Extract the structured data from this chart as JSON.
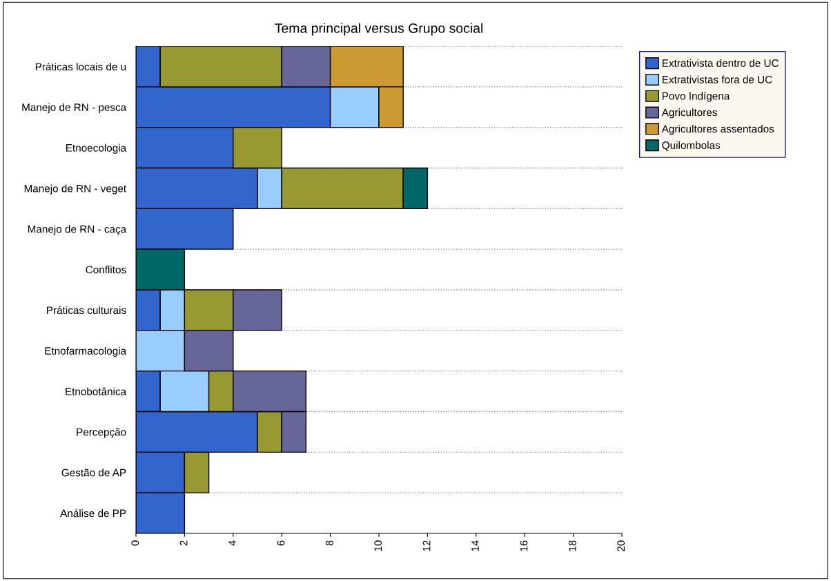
{
  "chart_data": {
    "type": "bar",
    "orientation": "horizontal",
    "stacked": true,
    "title": "Tema principal versus Grupo social",
    "categories": [
      "Práticas locais de u",
      "Manejo de RN - pesca",
      "Etnoecologia",
      "Manejo de RN - veget",
      "Manejo de RN - caça",
      "Conflitos",
      "Práticas culturais",
      "Etnofarmacologia",
      "Etnobotânica",
      "Percepção",
      "Gestão de AP",
      "Análise de PP"
    ],
    "series": [
      {
        "name": "Extrativista dentro de UC",
        "color": "#3366cc",
        "values": [
          1,
          8,
          4,
          5,
          4,
          null,
          1,
          null,
          1,
          5,
          2,
          2
        ]
      },
      {
        "name": "Extrativistas fora de UC",
        "color": "#99ccff",
        "values": [
          null,
          2,
          null,
          1,
          null,
          null,
          1,
          2,
          2,
          null,
          null,
          null
        ]
      },
      {
        "name": "Povo Indígena",
        "color": "#999933",
        "values": [
          5,
          null,
          2,
          5,
          null,
          null,
          2,
          null,
          1,
          1,
          1,
          null
        ]
      },
      {
        "name": "Agricultores",
        "color": "#666699",
        "values": [
          2,
          null,
          null,
          null,
          null,
          null,
          2,
          2,
          3,
          1,
          null,
          null
        ]
      },
      {
        "name": "Agricultores assentados",
        "color": "#cc9933",
        "values": [
          3,
          1,
          null,
          null,
          null,
          null,
          null,
          null,
          null,
          null,
          null,
          null
        ]
      },
      {
        "name": "Quilombolas",
        "color": "#006666",
        "values": [
          null,
          null,
          null,
          1,
          null,
          2,
          null,
          null,
          null,
          null,
          null,
          null
        ]
      }
    ],
    "xlim": [
      0,
      20
    ],
    "xticks": [
      0,
      2,
      4,
      6,
      8,
      10,
      12,
      14,
      16,
      18,
      20
    ],
    "grid": "y",
    "legend": "right"
  }
}
